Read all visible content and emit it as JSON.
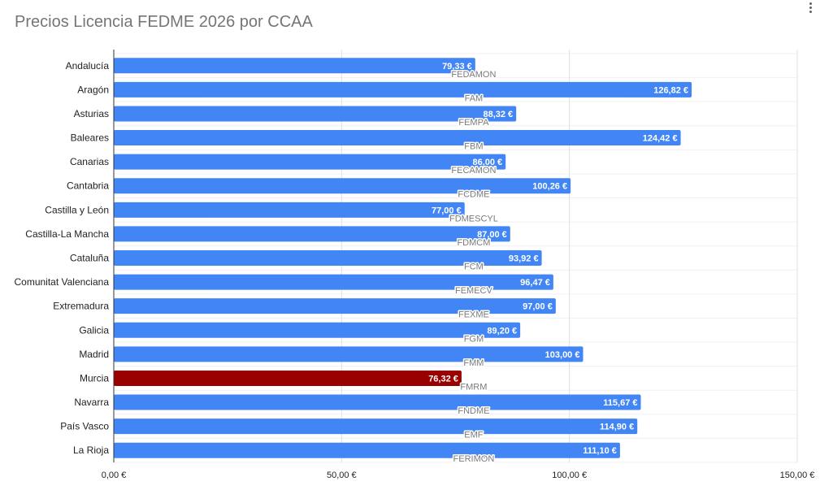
{
  "menu": {
    "icon": "more-vert-icon"
  },
  "chart_data": {
    "type": "bar",
    "orientation": "horizontal",
    "title": "Precios Licencia FEDME 2026 por CCAA",
    "xlabel": "",
    "ylabel": "",
    "xlim": [
      0,
      150
    ],
    "x_ticks": [
      0,
      50,
      100,
      150
    ],
    "x_tick_labels": [
      "0,00 €",
      "50,00 €",
      "100,00 €",
      "150,00 €"
    ],
    "grid": true,
    "categories": [
      "Andalucía",
      "Aragón",
      "Asturias",
      "Baleares",
      "Canarias",
      "Cantabria",
      "Castilla y León",
      "Castilla-La Mancha",
      "Cataluña",
      "Comunitat Valenciana",
      "Extremadura",
      "Galicia",
      "Madrid",
      "Murcia",
      "Navarra",
      "País Vasco",
      "La Rioja"
    ],
    "values": [
      79.33,
      126.82,
      88.32,
      124.42,
      86.0,
      100.26,
      77.0,
      87.0,
      93.92,
      96.47,
      97.0,
      89.2,
      103.0,
      76.32,
      115.67,
      114.9,
      111.1
    ],
    "value_labels": [
      "79,33 €",
      "126,82 €",
      "88,32 €",
      "124,42 €",
      "86,00 €",
      "100,26 €",
      "77,00 €",
      "87,00 €",
      "93,92 €",
      "96,47 €",
      "97,00 €",
      "89,20 €",
      "103,00 €",
      "76,32 €",
      "115,67 €",
      "114,90 €",
      "111,10 €"
    ],
    "federations": [
      "FEDAMON",
      "FAM",
      "FEMPA",
      "FBM",
      "FECAMON",
      "FCDME",
      "FDMESCYL",
      "FDMCM",
      "FCM",
      "FEMECV",
      "FEXME",
      "FGM",
      "FMM",
      "FMRM",
      "FNDME",
      "EMF",
      "FERIMON"
    ],
    "colors": {
      "default": "#4285f4",
      "highlight": "#990000",
      "grid": "#e0e0e0",
      "axis": "#333333"
    },
    "highlight_category": "Murcia"
  }
}
